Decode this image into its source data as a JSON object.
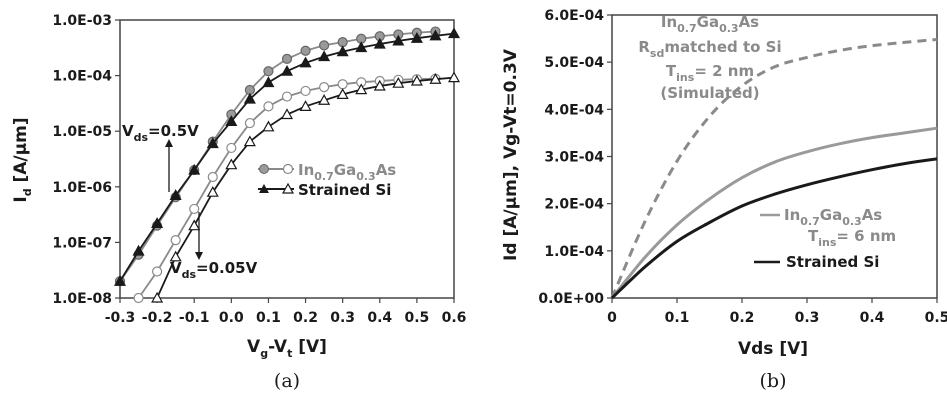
{
  "chart_data": [
    {
      "type": "line",
      "panel": "a",
      "caption": "(a)",
      "xlabel": "V",
      "xlabel_sub": "g",
      "xlabel_mid": "-V",
      "xlabel_sub2": "t",
      "xlabel_unit": " [V]",
      "ylabel": "I",
      "ylabel_sub": "d",
      "ylabel_unit": " [A/μm]",
      "yscale": "log",
      "xlim": [
        -0.3,
        0.6
      ],
      "ylim": [
        1e-08,
        0.001
      ],
      "x_ticks": [
        "-0.3",
        "-0.2",
        "-0.1",
        "0.0",
        "0.1",
        "0.2",
        "0.3",
        "0.4",
        "0.5",
        "0.6"
      ],
      "y_ticks": [
        "1.0E-08",
        "1.0E-07",
        "1.0E-06",
        "1.0E-05",
        "1.0E-04",
        "1.0E-03"
      ],
      "annotations": {
        "vds_high": {
          "main": "V",
          "sub": "ds",
          "rest": "=0.5V"
        },
        "vds_low": {
          "main": "V",
          "sub": "ds",
          "rest": "=0.05V"
        }
      },
      "legend": [
        {
          "main": "In",
          "sub1": "0.7",
          "mid": "Ga",
          "sub2": "0.3",
          "tail": "As",
          "marker": "circle",
          "color": "#8a8a8a"
        },
        {
          "main": "Strained Si",
          "marker": "triangle",
          "color": "#1a1a1a"
        }
      ],
      "series": [
        {
          "name": "InGaAs Vds=0.5V",
          "marker": "circle",
          "fill": "#9a9a9a",
          "line": "#8a8a8a",
          "x": [
            -0.3,
            -0.25,
            -0.2,
            -0.15,
            -0.1,
            -0.05,
            0.0,
            0.05,
            0.1,
            0.15,
            0.2,
            0.25,
            0.3,
            0.35,
            0.4,
            0.45,
            0.5,
            0.55
          ],
          "y": [
            2e-08,
            6e-08,
            2e-07,
            6.5e-07,
            2e-06,
            6.5e-06,
            2e-05,
            5.5e-05,
            0.00012,
            0.0002,
            0.00028,
            0.00035,
            0.0004,
            0.00046,
            0.00051,
            0.00055,
            0.00059,
            0.00062
          ]
        },
        {
          "name": "Strained Si Vds=0.5V",
          "marker": "triangle",
          "fill": "#1a1a1a",
          "line": "#1a1a1a",
          "x": [
            -0.3,
            -0.25,
            -0.2,
            -0.15,
            -0.1,
            -0.05,
            0.0,
            0.05,
            0.1,
            0.15,
            0.2,
            0.25,
            0.3,
            0.35,
            0.4,
            0.45,
            0.5,
            0.55,
            0.6
          ],
          "y": [
            2e-08,
            7e-08,
            2.2e-07,
            7e-07,
            2e-06,
            6e-06,
            1.5e-05,
            3.8e-05,
            7.5e-05,
            0.00012,
            0.00017,
            0.00022,
            0.00027,
            0.00032,
            0.00037,
            0.00042,
            0.00047,
            0.00052,
            0.00057
          ]
        },
        {
          "name": "InGaAs Vds=0.05V",
          "marker": "open-circle",
          "fill": "#ffffff",
          "line": "#8a8a8a",
          "x": [
            -0.25,
            -0.2,
            -0.15,
            -0.1,
            -0.05,
            0.0,
            0.05,
            0.1,
            0.15,
            0.2,
            0.25,
            0.3,
            0.35,
            0.4,
            0.45,
            0.5,
            0.55
          ],
          "y": [
            1e-08,
            3e-08,
            1.1e-07,
            4e-07,
            1.5e-06,
            5e-06,
            1.4e-05,
            2.8e-05,
            4.2e-05,
            5.3e-05,
            6.2e-05,
            7e-05,
            7.6e-05,
            8e-05,
            8.4e-05,
            8.6e-05,
            8.8e-05
          ]
        },
        {
          "name": "Strained Si Vds=0.05V",
          "marker": "open-triangle",
          "fill": "#ffffff",
          "line": "#1a1a1a",
          "x": [
            -0.2,
            -0.15,
            -0.1,
            -0.05,
            0.0,
            0.05,
            0.1,
            0.15,
            0.2,
            0.25,
            0.3,
            0.35,
            0.4,
            0.45,
            0.5,
            0.55,
            0.6
          ],
          "y": [
            1e-08,
            5.5e-08,
            2e-07,
            8e-07,
            2.5e-06,
            6.5e-06,
            1.2e-05,
            2e-05,
            2.8e-05,
            3.6e-05,
            4.6e-05,
            5.6e-05,
            6.5e-05,
            7.3e-05,
            8e-05,
            8.6e-05,
            9.2e-05
          ]
        }
      ]
    },
    {
      "type": "line",
      "panel": "b",
      "caption": "(b)",
      "xlabel": "Vds [V]",
      "ylabel": "Id [A/μm], Vg-Vt=0.3V",
      "xlim": [
        0,
        0.5
      ],
      "ylim": [
        0,
        0.0006
      ],
      "x_ticks": [
        "0",
        "0.1",
        "0.2",
        "0.3",
        "0.4",
        "0.5"
      ],
      "y_ticks": [
        "0.0E+00",
        "1.0E-04",
        "2.0E-04",
        "3.0E-04",
        "4.0E-04",
        "5.0E-04",
        "6.0E-04"
      ],
      "labels": {
        "sim": {
          "line1": {
            "main": "In",
            "sub1": "0.7",
            "mid": "Ga",
            "sub2": "0.3",
            "tail": "As"
          },
          "line2": {
            "main": "R",
            "sub": "sd",
            "rest": "matched to Si"
          },
          "line3": {
            "main": "T",
            "sub": "ins",
            "rest": "= 2 nm"
          },
          "line4": "(Simulated)"
        },
        "ingaas": {
          "line1": {
            "main": "In",
            "sub1": "0.7",
            "mid": "Ga",
            "sub2": "0.3",
            "tail": "As"
          },
          "line2": {
            "main": "T",
            "sub": "ins",
            "rest": "= 6 nm"
          }
        },
        "si": "Strained Si"
      },
      "series": [
        {
          "name": "InGaAs Rsd matched to Si, Tins=2nm (Simulated)",
          "style": "dashed",
          "color": "#8a8a8a",
          "x": [
            0,
            0.05,
            0.1,
            0.15,
            0.2,
            0.25,
            0.3,
            0.35,
            0.4,
            0.45,
            0.5
          ],
          "y": [
            0,
            0.00016,
            0.00029,
            0.000385,
            0.00045,
            0.00049,
            0.00051,
            0.000525,
            0.000535,
            0.000542,
            0.000548
          ]
        },
        {
          "name": "InGaAs Tins=6nm",
          "style": "solid",
          "color": "#9a9a9a",
          "x": [
            0,
            0.05,
            0.1,
            0.15,
            0.2,
            0.25,
            0.3,
            0.35,
            0.4,
            0.45,
            0.5
          ],
          "y": [
            0,
            8.5e-05,
            0.000155,
            0.00021,
            0.000255,
            0.000288,
            0.00031,
            0.000327,
            0.00034,
            0.00035,
            0.00036
          ]
        },
        {
          "name": "Strained Si",
          "style": "solid",
          "color": "#1a1a1a",
          "x": [
            0,
            0.05,
            0.1,
            0.15,
            0.2,
            0.25,
            0.3,
            0.35,
            0.4,
            0.45,
            0.5
          ],
          "y": [
            0,
            6.5e-05,
            0.00012,
            0.00016,
            0.000195,
            0.00022,
            0.00024,
            0.000257,
            0.000272,
            0.000285,
            0.000295
          ]
        }
      ]
    }
  ]
}
